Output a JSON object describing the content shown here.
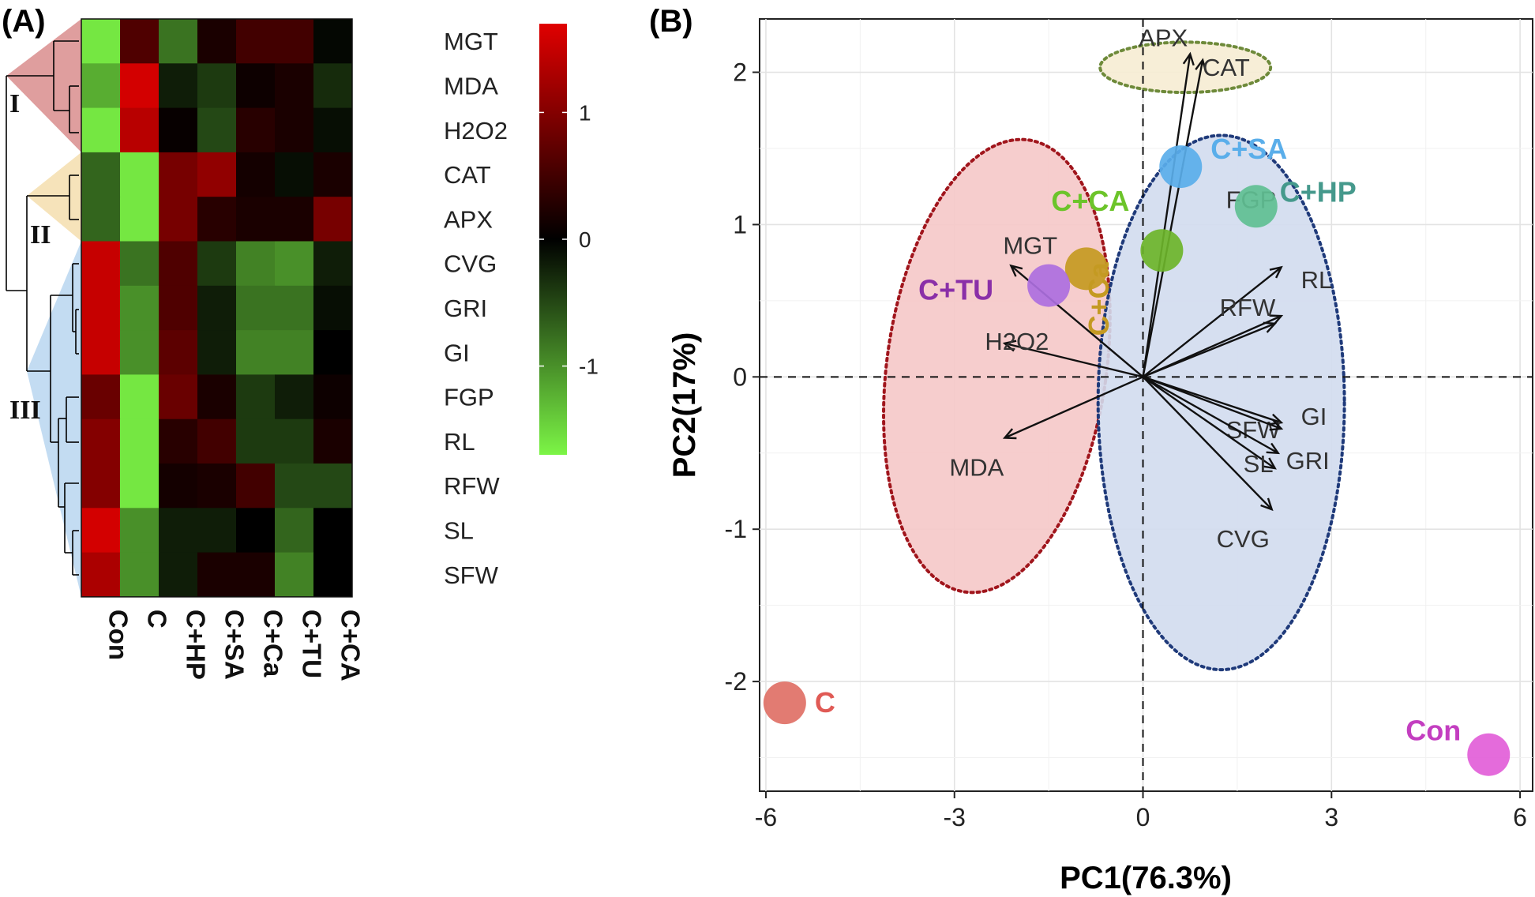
{
  "chart_data": [
    {
      "type": "heatmap",
      "panel_label": "(A)",
      "rows": [
        "MGT",
        "MDA",
        "H2O2",
        "CAT",
        "APX",
        "CVG",
        "GRI",
        "GI",
        "FGP",
        "RL",
        "RFW",
        "SL",
        "SFW"
      ],
      "columns": [
        "Con",
        "C",
        "C+HP",
        "C+SA",
        "C+Ca",
        "C+TU",
        "C+CA"
      ],
      "values": [
        [
          -1.6,
          0.6,
          -0.8,
          0.2,
          0.5,
          0.5,
          -0.05
        ],
        [
          -1.2,
          1.6,
          -0.2,
          -0.4,
          0.1,
          0.2,
          -0.3
        ],
        [
          -1.6,
          1.4,
          0.05,
          -0.5,
          0.3,
          0.2,
          -0.1
        ],
        [
          -0.7,
          -1.6,
          0.9,
          1.1,
          0.15,
          -0.1,
          0.2
        ],
        [
          -0.7,
          -1.6,
          0.9,
          0.3,
          0.2,
          0.2,
          0.9
        ],
        [
          1.5,
          -0.8,
          0.6,
          -0.4,
          -0.9,
          -1.0,
          -0.2
        ],
        [
          1.5,
          -1.0,
          0.6,
          -0.2,
          -0.8,
          -0.8,
          -0.1
        ],
        [
          1.5,
          -1.0,
          0.7,
          -0.2,
          -0.9,
          -0.9,
          0.0
        ],
        [
          0.8,
          -1.6,
          0.8,
          0.2,
          -0.4,
          -0.2,
          0.1
        ],
        [
          1.0,
          -1.6,
          0.3,
          0.5,
          -0.4,
          -0.4,
          0.2
        ],
        [
          1.0,
          -1.6,
          0.15,
          0.2,
          0.5,
          -0.5,
          -0.5
        ],
        [
          1.6,
          -1.0,
          -0.2,
          -0.2,
          0.0,
          -0.7,
          0.0
        ],
        [
          1.3,
          -1.0,
          -0.2,
          0.2,
          0.2,
          -0.9,
          0.0
        ]
      ],
      "color_scale": {
        "low": "#7cf546",
        "mid": "#000000",
        "high": "#e00000",
        "min": -1.7,
        "max": 1.7
      },
      "colorbar_ticks": [
        1,
        0,
        -1
      ],
      "colorbar_tick_labels": [
        "1",
        "0",
        "-1"
      ],
      "clusters": [
        {
          "label": "I",
          "rows": [
            "MGT",
            "MDA",
            "H2O2"
          ],
          "color": "#d98d8d"
        },
        {
          "label": "II",
          "rows": [
            "CAT",
            "APX"
          ],
          "color": "#f5deae"
        },
        {
          "label": "III",
          "rows": [
            "CVG",
            "GRI",
            "GI",
            "FGP",
            "RL",
            "RFW",
            "SL",
            "SFW"
          ],
          "color": "#b8d6f0"
        }
      ]
    },
    {
      "type": "scatter",
      "subtype": "pca_biplot",
      "panel_label": "(B)",
      "xlabel": "PC1(76.3%)",
      "ylabel": "PC2(17%)",
      "xlim": [
        -6.1,
        6.2
      ],
      "ylim": [
        -2.72,
        2.35
      ],
      "xticks": [
        -6,
        -3,
        0,
        3,
        6
      ],
      "xtick_labels": [
        "-6",
        "-3",
        "0",
        "3",
        "6"
      ],
      "yticks": [
        -2,
        -1,
        0,
        1,
        2
      ],
      "ytick_labels": [
        "-2",
        "-1",
        "0",
        "1",
        "2"
      ],
      "points": [
        {
          "name": "C",
          "x": -5.7,
          "y": -2.14,
          "color": "#e07066",
          "label_color": "#e05a55"
        },
        {
          "name": "Con",
          "x": 5.5,
          "y": -2.48,
          "color": "#e25ed8",
          "label_color": "#c33ec0"
        },
        {
          "name": "C+SA",
          "x": 0.6,
          "y": 1.38,
          "color": "#5aaeea",
          "label_color": "#5aaeea"
        },
        {
          "name": "C+HP",
          "x": 1.8,
          "y": 1.12,
          "color": "#5fbf93",
          "label_color": "#45998c"
        },
        {
          "name": "C+CA",
          "x": 0.3,
          "y": 0.83,
          "color": "#6cb42a",
          "label_color": "#6cc42a"
        },
        {
          "name": "C+Ca",
          "x": -0.9,
          "y": 0.71,
          "color": "#c49a22",
          "label_color": "#c49a22"
        },
        {
          "name": "C+TU",
          "x": -1.5,
          "y": 0.6,
          "color": "#ad6fe0",
          "label_color": "#8a2fa8"
        }
      ],
      "loadings": [
        {
          "name": "APX",
          "x": 0.75,
          "y": 2.12
        },
        {
          "name": "CAT",
          "x": 0.95,
          "y": 2.08
        },
        {
          "name": "MGT",
          "x": -2.1,
          "y": 0.73
        },
        {
          "name": "H2O2",
          "x": -2.2,
          "y": 0.22
        },
        {
          "name": "MDA",
          "x": -2.2,
          "y": -0.4
        },
        {
          "name": "FGP",
          "x": 2.2,
          "y": 0.72
        },
        {
          "name": "RL",
          "x": 2.2,
          "y": 0.4
        },
        {
          "name": "RFW",
          "x": 2.1,
          "y": 0.35
        },
        {
          "name": "SFW",
          "x": 2.2,
          "y": -0.3
        },
        {
          "name": "GI",
          "x": 2.2,
          "y": -0.34
        },
        {
          "name": "GRI",
          "x": 2.15,
          "y": -0.5
        },
        {
          "name": "SL",
          "x": 2.1,
          "y": -0.6
        },
        {
          "name": "CVG",
          "x": 2.05,
          "y": -0.87
        }
      ],
      "groups": [
        {
          "members": [
            "APX",
            "CAT"
          ],
          "fill": "#f6ecd3",
          "stroke": "#6e8a3a"
        },
        {
          "members": [
            "MGT",
            "H2O2",
            "MDA"
          ],
          "fill": "#f5c8c8",
          "stroke": "#a0151c"
        },
        {
          "members": [
            "FGP",
            "RL",
            "RFW",
            "SFW",
            "GI",
            "GRI",
            "SL",
            "CVG"
          ],
          "fill": "#d2dcee",
          "stroke": "#1f3a7a"
        }
      ]
    }
  ]
}
